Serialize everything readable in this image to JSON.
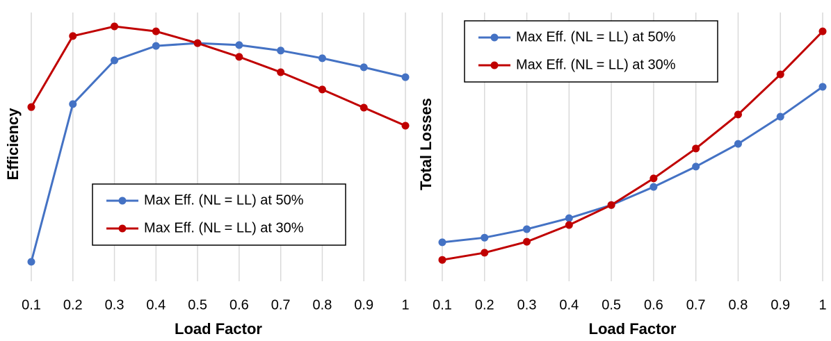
{
  "chart_data": [
    {
      "type": "line",
      "xlabel": "Load Factor",
      "ylabel": "Efficiency",
      "x": [
        0.1,
        0.2,
        0.3,
        0.4,
        0.5,
        0.6,
        0.7,
        0.8,
        0.9,
        1
      ],
      "xlim": [
        0.1,
        1
      ],
      "xticks": [
        0.1,
        0.2,
        0.3,
        0.4,
        0.5,
        0.6,
        0.7,
        0.8,
        0.9,
        1
      ],
      "ylim": [
        0,
        100
      ],
      "grid": true,
      "legend": "lower center",
      "series": [
        {
          "name": "Max Eff. (NL = LL) at 50%",
          "color": "#4472c4",
          "values": [
            7.1,
            64.6,
            80.5,
            85.8,
            86.8,
            86.1,
            84.1,
            81.3,
            78.0,
            74.4
          ]
        },
        {
          "name": "Max Eff. (NL = LL) at 30%",
          "color": "#c00000",
          "values": [
            63.5,
            89.4,
            92.9,
            91.1,
            86.8,
            81.8,
            76.2,
            69.9,
            63.3,
            56.7
          ]
        }
      ]
    },
    {
      "type": "line",
      "xlabel": "Load Factor",
      "ylabel": "Total Losses",
      "x": [
        0.1,
        0.2,
        0.3,
        0.4,
        0.5,
        0.6,
        0.7,
        0.8,
        0.9,
        1
      ],
      "xlim": [
        0.1,
        1
      ],
      "xticks": [
        0.1,
        0.2,
        0.3,
        0.4,
        0.5,
        0.6,
        0.7,
        0.8,
        0.9,
        1
      ],
      "ylim": [
        0,
        100
      ],
      "grid": true,
      "legend": "upper left",
      "series": [
        {
          "name": "Max Eff. (NL = LL) at 50%",
          "color": "#4472c4",
          "values": [
            14.2,
            15.9,
            19.0,
            23.0,
            27.8,
            34.4,
            41.8,
            50.1,
            60.0,
            70.9
          ]
        },
        {
          "name": "Max Eff. (NL = LL) at 30%",
          "color": "#c00000",
          "values": [
            7.8,
            10.4,
            14.4,
            20.5,
            27.8,
            37.5,
            48.4,
            60.8,
            75.4,
            91.1
          ]
        }
      ]
    }
  ]
}
